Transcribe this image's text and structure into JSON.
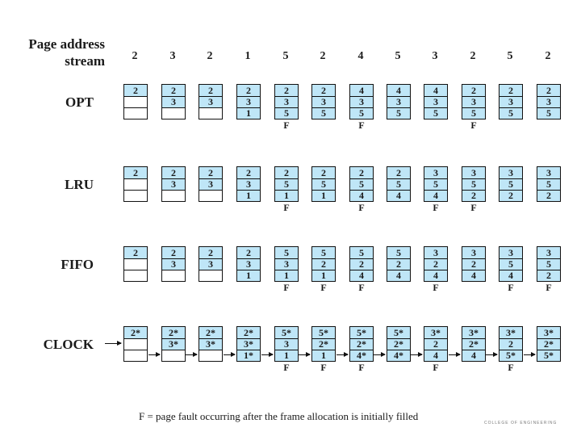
{
  "header": {
    "title_line1": "Page address",
    "title_line2": "stream",
    "stream": [
      "2",
      "3",
      "2",
      "1",
      "5",
      "2",
      "4",
      "5",
      "3",
      "2",
      "5",
      "2"
    ]
  },
  "policies": [
    {
      "label": "OPT",
      "frames": [
        [
          {
            "v": "2",
            "h": true
          },
          {
            "v": "",
            "h": false
          },
          {
            "v": "",
            "h": false
          }
        ],
        [
          {
            "v": "2",
            "h": true
          },
          {
            "v": "3",
            "h": true
          },
          {
            "v": "",
            "h": false
          }
        ],
        [
          {
            "v": "2",
            "h": true
          },
          {
            "v": "3",
            "h": true
          },
          {
            "v": "",
            "h": false
          }
        ],
        [
          {
            "v": "2",
            "h": true
          },
          {
            "v": "3",
            "h": true
          },
          {
            "v": "1",
            "h": true
          }
        ],
        [
          {
            "v": "2",
            "h": true
          },
          {
            "v": "3",
            "h": true
          },
          {
            "v": "5",
            "h": true
          }
        ],
        [
          {
            "v": "2",
            "h": true
          },
          {
            "v": "3",
            "h": true
          },
          {
            "v": "5",
            "h": true
          }
        ],
        [
          {
            "v": "4",
            "h": true
          },
          {
            "v": "3",
            "h": true
          },
          {
            "v": "5",
            "h": true
          }
        ],
        [
          {
            "v": "4",
            "h": true
          },
          {
            "v": "3",
            "h": true
          },
          {
            "v": "5",
            "h": true
          }
        ],
        [
          {
            "v": "4",
            "h": true
          },
          {
            "v": "3",
            "h": true
          },
          {
            "v": "5",
            "h": true
          }
        ],
        [
          {
            "v": "2",
            "h": true
          },
          {
            "v": "3",
            "h": true
          },
          {
            "v": "5",
            "h": true
          }
        ],
        [
          {
            "v": "2",
            "h": true
          },
          {
            "v": "3",
            "h": true
          },
          {
            "v": "5",
            "h": true
          }
        ],
        [
          {
            "v": "2",
            "h": true
          },
          {
            "v": "3",
            "h": true
          },
          {
            "v": "5",
            "h": true
          }
        ]
      ],
      "faults": [
        "",
        "",
        "",
        "",
        "F",
        "",
        "F",
        "",
        "",
        "F",
        "",
        ""
      ]
    },
    {
      "label": "LRU",
      "frames": [
        [
          {
            "v": "2",
            "h": true
          },
          {
            "v": "",
            "h": false
          },
          {
            "v": "",
            "h": false
          }
        ],
        [
          {
            "v": "2",
            "h": true
          },
          {
            "v": "3",
            "h": true
          },
          {
            "v": "",
            "h": false
          }
        ],
        [
          {
            "v": "2",
            "h": true
          },
          {
            "v": "3",
            "h": true
          },
          {
            "v": "",
            "h": false
          }
        ],
        [
          {
            "v": "2",
            "h": true
          },
          {
            "v": "3",
            "h": true
          },
          {
            "v": "1",
            "h": true
          }
        ],
        [
          {
            "v": "2",
            "h": true
          },
          {
            "v": "5",
            "h": true
          },
          {
            "v": "1",
            "h": true
          }
        ],
        [
          {
            "v": "2",
            "h": true
          },
          {
            "v": "5",
            "h": true
          },
          {
            "v": "1",
            "h": true
          }
        ],
        [
          {
            "v": "2",
            "h": true
          },
          {
            "v": "5",
            "h": true
          },
          {
            "v": "4",
            "h": true
          }
        ],
        [
          {
            "v": "2",
            "h": true
          },
          {
            "v": "5",
            "h": true
          },
          {
            "v": "4",
            "h": true
          }
        ],
        [
          {
            "v": "3",
            "h": true
          },
          {
            "v": "5",
            "h": true
          },
          {
            "v": "4",
            "h": true
          }
        ],
        [
          {
            "v": "3",
            "h": true
          },
          {
            "v": "5",
            "h": true
          },
          {
            "v": "2",
            "h": true
          }
        ],
        [
          {
            "v": "3",
            "h": true
          },
          {
            "v": "5",
            "h": true
          },
          {
            "v": "2",
            "h": true
          }
        ],
        [
          {
            "v": "3",
            "h": true
          },
          {
            "v": "5",
            "h": true
          },
          {
            "v": "2",
            "h": true
          }
        ]
      ],
      "faults": [
        "",
        "",
        "",
        "",
        "F",
        "",
        "F",
        "",
        "F",
        "F",
        "",
        ""
      ]
    },
    {
      "label": "FIFO",
      "frames": [
        [
          {
            "v": "2",
            "h": true
          },
          {
            "v": "",
            "h": false
          },
          {
            "v": "",
            "h": false
          }
        ],
        [
          {
            "v": "2",
            "h": true
          },
          {
            "v": "3",
            "h": true
          },
          {
            "v": "",
            "h": false
          }
        ],
        [
          {
            "v": "2",
            "h": true
          },
          {
            "v": "3",
            "h": true
          },
          {
            "v": "",
            "h": false
          }
        ],
        [
          {
            "v": "2",
            "h": true
          },
          {
            "v": "3",
            "h": true
          },
          {
            "v": "1",
            "h": true
          }
        ],
        [
          {
            "v": "5",
            "h": true
          },
          {
            "v": "3",
            "h": true
          },
          {
            "v": "1",
            "h": true
          }
        ],
        [
          {
            "v": "5",
            "h": true
          },
          {
            "v": "2",
            "h": true
          },
          {
            "v": "1",
            "h": true
          }
        ],
        [
          {
            "v": "5",
            "h": true
          },
          {
            "v": "2",
            "h": true
          },
          {
            "v": "4",
            "h": true
          }
        ],
        [
          {
            "v": "5",
            "h": true
          },
          {
            "v": "2",
            "h": true
          },
          {
            "v": "4",
            "h": true
          }
        ],
        [
          {
            "v": "3",
            "h": true
          },
          {
            "v": "2",
            "h": true
          },
          {
            "v": "4",
            "h": true
          }
        ],
        [
          {
            "v": "3",
            "h": true
          },
          {
            "v": "2",
            "h": true
          },
          {
            "v": "4",
            "h": true
          }
        ],
        [
          {
            "v": "3",
            "h": true
          },
          {
            "v": "5",
            "h": true
          },
          {
            "v": "4",
            "h": true
          }
        ],
        [
          {
            "v": "3",
            "h": true
          },
          {
            "v": "5",
            "h": true
          },
          {
            "v": "2",
            "h": true
          }
        ]
      ],
      "faults": [
        "",
        "",
        "",
        "",
        "F",
        "F",
        "F",
        "",
        "F",
        "",
        "F",
        "F"
      ]
    },
    {
      "label": "CLOCK",
      "frames": [
        [
          {
            "v": "2*",
            "h": true
          },
          {
            "v": "",
            "h": false
          },
          {
            "v": "",
            "h": false
          }
        ],
        [
          {
            "v": "2*",
            "h": true
          },
          {
            "v": "3*",
            "h": true
          },
          {
            "v": "",
            "h": false
          }
        ],
        [
          {
            "v": "2*",
            "h": true
          },
          {
            "v": "3*",
            "h": true
          },
          {
            "v": "",
            "h": false
          }
        ],
        [
          {
            "v": "2*",
            "h": true
          },
          {
            "v": "3*",
            "h": true
          },
          {
            "v": "1*",
            "h": true
          }
        ],
        [
          {
            "v": "5*",
            "h": true
          },
          {
            "v": "3",
            "h": true
          },
          {
            "v": "1",
            "h": true
          }
        ],
        [
          {
            "v": "5*",
            "h": true
          },
          {
            "v": "2*",
            "h": true
          },
          {
            "v": "1",
            "h": true
          }
        ],
        [
          {
            "v": "5*",
            "h": true
          },
          {
            "v": "2*",
            "h": true
          },
          {
            "v": "4*",
            "h": true
          }
        ],
        [
          {
            "v": "5*",
            "h": true
          },
          {
            "v": "2*",
            "h": true
          },
          {
            "v": "4*",
            "h": true
          }
        ],
        [
          {
            "v": "3*",
            "h": true
          },
          {
            "v": "2",
            "h": true
          },
          {
            "v": "4",
            "h": true
          }
        ],
        [
          {
            "v": "3*",
            "h": true
          },
          {
            "v": "2*",
            "h": true
          },
          {
            "v": "4",
            "h": true
          }
        ],
        [
          {
            "v": "3*",
            "h": true
          },
          {
            "v": "2",
            "h": true
          },
          {
            "v": "5*",
            "h": true
          }
        ],
        [
          {
            "v": "3*",
            "h": true
          },
          {
            "v": "2*",
            "h": true
          },
          {
            "v": "5*",
            "h": true
          }
        ]
      ],
      "faults": [
        "",
        "",
        "",
        "",
        "F",
        "F",
        "F",
        "",
        "F",
        "",
        "F",
        ""
      ]
    }
  ],
  "footnote": "F = page fault occurring after the frame allocation is initially filled",
  "branding": "COLLEGE OF ENGINEERING",
  "colors": {
    "highlight": "#bfe6f7",
    "border": "#111111"
  }
}
